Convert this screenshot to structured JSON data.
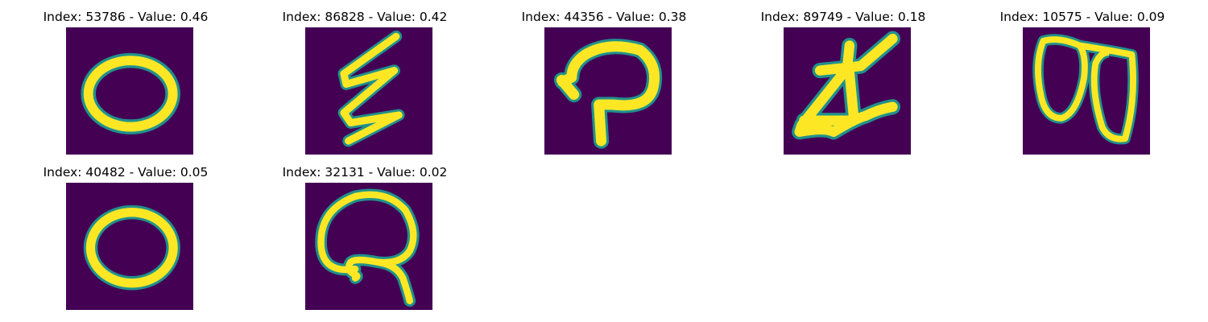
{
  "colors": {
    "background": "#440154",
    "foreground": "#fde725",
    "edge": "#21918c"
  },
  "panels": [
    {
      "title": "Index: 53786 - Value: 0.46",
      "index": "53786",
      "value": "0.46",
      "digit": "ellipse"
    },
    {
      "title": "Index: 86828 - Value: 0.42",
      "index": "86828",
      "value": "0.42",
      "digit": "zigzag"
    },
    {
      "title": "Index: 44356 - Value: 0.38",
      "index": "44356",
      "value": "0.38",
      "digit": "loop-hook"
    },
    {
      "title": "Index: 89749 - Value: 0.18",
      "index": "89749",
      "value": "0.18",
      "digit": "triangle-stroke"
    },
    {
      "title": "Index: 10575 - Value: 0.09",
      "index": "10575",
      "value": "0.09",
      "digit": "double-loop"
    },
    {
      "title": "Index: 40482 - Value: 0.05",
      "index": "40482",
      "value": "0.05",
      "digit": "ellipse"
    },
    {
      "title": "Index: 32131 - Value: 0.02",
      "index": "32131",
      "value": "0.02",
      "digit": "looped-tail"
    }
  ]
}
